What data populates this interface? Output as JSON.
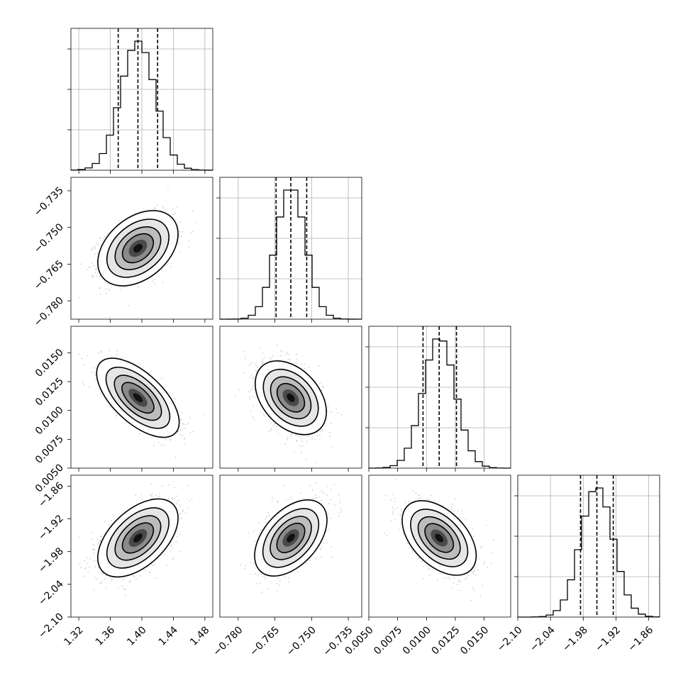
{
  "chart_data": {
    "type": "corner",
    "parameters": [
      {
        "range": [
          1.31,
          1.49
        ],
        "ticks": [
          1.32,
          1.36,
          1.4,
          1.44,
          1.48
        ],
        "tick_labels": [
          "1.32",
          "1.36",
          "1.40",
          "1.44",
          "1.48"
        ],
        "median": 1.395,
        "q16": 1.37,
        "q84": 1.42,
        "sigma": 0.022
      },
      {
        "range": [
          -0.7875,
          -0.7295
        ],
        "ticks": [
          -0.78,
          -0.765,
          -0.75,
          -0.735
        ],
        "tick_labels": [
          "−0.780",
          "−0.765",
          "−0.750",
          "−0.735"
        ],
        "median": -0.7585,
        "q16": -0.7645,
        "q84": -0.752,
        "sigma": 0.006
      },
      {
        "range": [
          0.005,
          0.0173
        ],
        "ticks": [
          0.005,
          0.0075,
          0.01,
          0.0125,
          0.015
        ],
        "tick_labels": [
          "0.0050",
          "0.0075",
          "0.0100",
          "0.0125",
          "0.0150"
        ],
        "median": 0.0111,
        "q16": 0.0097,
        "q84": 0.0126,
        "sigma": 0.0014
      },
      {
        "range": [
          -2.1,
          -1.84
        ],
        "ticks": [
          -2.1,
          -2.04,
          -1.98,
          -1.92,
          -1.86
        ],
        "tick_labels": [
          "−2.10",
          "−2.04",
          "−1.98",
          "−1.92",
          "−1.86"
        ],
        "median": -1.955,
        "q16": -1.985,
        "q84": -1.925,
        "sigma": 0.03
      }
    ],
    "correlations": [
      [
        1,
        0.4,
        -0.7,
        0.55
      ],
      [
        0.4,
        1,
        -0.4,
        0.5
      ],
      [
        -0.7,
        -0.4,
        1,
        -0.5
      ],
      [
        0.55,
        0.5,
        -0.5,
        1
      ]
    ],
    "diagonal": "1-D marginal histograms with dashed lines at 16th, 50th, 84th percentiles",
    "off_diagonal": "2-D density (gray scatter, shaded bins, contour levels)",
    "grid": true
  }
}
